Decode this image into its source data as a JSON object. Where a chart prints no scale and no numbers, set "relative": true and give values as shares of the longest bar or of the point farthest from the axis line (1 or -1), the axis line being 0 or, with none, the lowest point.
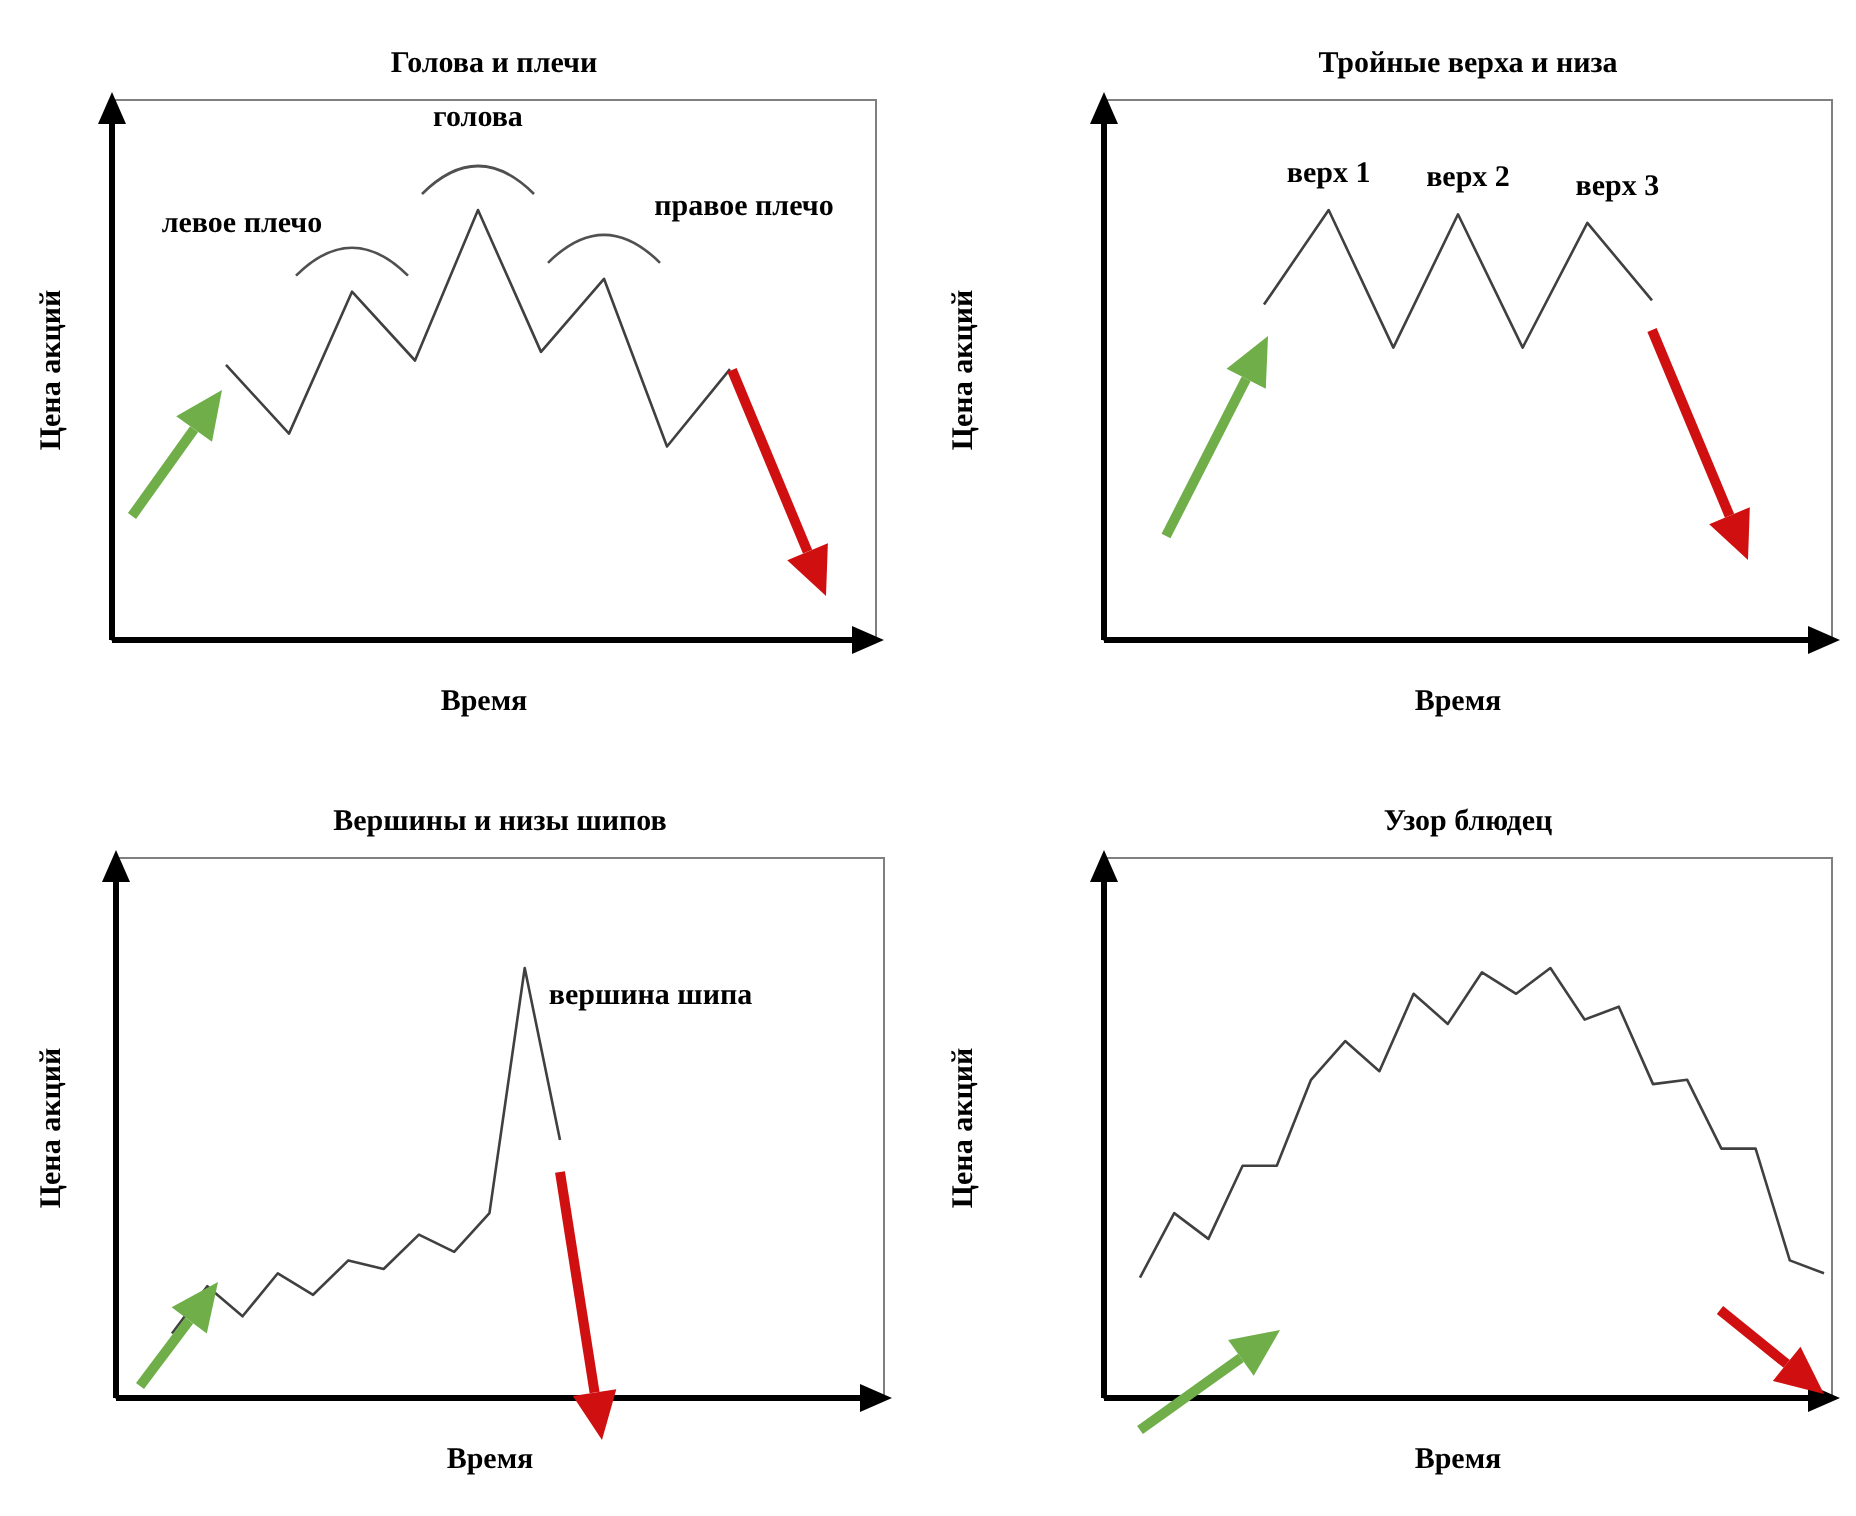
{
  "chart_data": [
    {
      "type": "line",
      "title": "Голова и плечи",
      "xlabel": "Время",
      "ylabel": "Цена акций",
      "relative": true,
      "tick_labels": false,
      "annotations": [
        "левое плечо",
        "голова",
        "правое плечо"
      ],
      "categories": [
        null,
        null,
        null,
        null,
        null,
        null,
        null,
        null,
        null
      ],
      "series": [
        {
          "color": "#404040",
          "values": [
            0.64,
            0.48,
            0.81,
            0.65,
            1,
            0.67,
            0.84,
            0.45,
            0.63
          ]
        }
      ]
    },
    {
      "type": "line",
      "title": "Тройные верха и низа",
      "xlabel": "Время",
      "ylabel": "Цена акций",
      "relative": true,
      "tick_labels": false,
      "annotations": [
        "верх 1",
        "верх 2",
        "верх 3"
      ],
      "categories": [
        null,
        null,
        null,
        null,
        null,
        null,
        null
      ],
      "series": [
        {
          "color": "#404040",
          "values": [
            0.78,
            1,
            0.68,
            0.99,
            0.68,
            0.97,
            0.79
          ]
        }
      ]
    },
    {
      "type": "line",
      "title": "Вершины и низы шипов",
      "xlabel": "Время",
      "ylabel": "Цена акций",
      "relative": true,
      "tick_labels": false,
      "annotations": [
        "вершина шипа"
      ],
      "categories": [
        null,
        null,
        null,
        null,
        null,
        null,
        null,
        null,
        null,
        null,
        null,
        null
      ],
      "series": [
        {
          "color": "#404040",
          "values": [
            0.15,
            0.26,
            0.19,
            0.29,
            0.24,
            0.32,
            0.3,
            0.38,
            0.34,
            0.43,
            1,
            0.6
          ]
        }
      ]
    },
    {
      "type": "line",
      "title": "Узор блюдец",
      "xlabel": "Время",
      "ylabel": "Цена акций",
      "relative": true,
      "tick_labels": false,
      "categories": [
        null,
        null,
        null,
        null,
        null,
        null,
        null,
        null,
        null,
        null,
        null,
        null,
        null,
        null,
        null,
        null,
        null,
        null,
        null,
        null,
        null
      ],
      "series": [
        {
          "color": "#404040",
          "values": [
            0.28,
            0.43,
            0.37,
            0.54,
            0.54,
            0.74,
            0.83,
            0.76,
            0.94,
            0.87,
            0.99,
            0.94,
            1,
            0.88,
            0.91,
            0.73,
            0.74,
            0.58,
            0.58,
            0.32,
            0.29
          ]
        }
      ]
    }
  ]
}
